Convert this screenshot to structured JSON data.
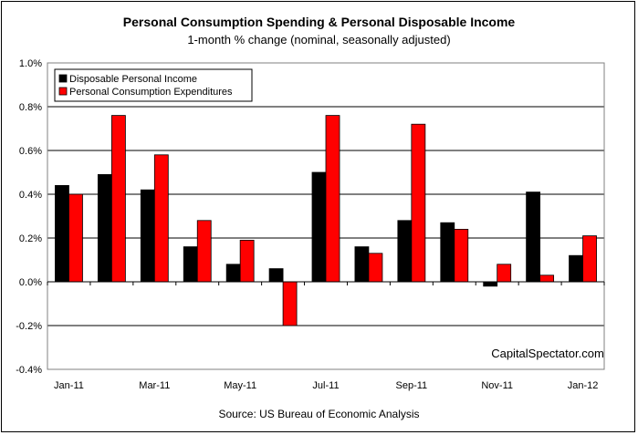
{
  "chart_data": {
    "type": "bar",
    "title": "Personal Consumption Spending & Personal Disposable Income",
    "subtitle": "1-month % change (nominal, seasonally adjusted)",
    "source": "Source: US Bureau of Economic Analysis",
    "watermark": "CapitalSpectator.com",
    "categories": [
      "Jan-11",
      "Feb-11",
      "Mar-11",
      "Apr-11",
      "May-11",
      "Jun-11",
      "Jul-11",
      "Aug-11",
      "Sep-11",
      "Oct-11",
      "Nov-11",
      "Dec-11",
      "Jan-12"
    ],
    "x_tick_labels": [
      "Jan-11",
      "",
      "Mar-11",
      "",
      "May-11",
      "",
      "Jul-11",
      "",
      "Sep-11",
      "",
      "Nov-11",
      "",
      "Jan-12"
    ],
    "series": [
      {
        "name": "Disposable Personal Income",
        "color": "#000000",
        "values": [
          0.44,
          0.49,
          0.42,
          0.16,
          0.08,
          0.06,
          0.5,
          0.16,
          0.28,
          0.27,
          -0.02,
          0.41,
          0.12
        ]
      },
      {
        "name": "Personal Consumption Expenditures",
        "color": "#ff0000",
        "values": [
          0.4,
          0.76,
          0.58,
          0.28,
          0.19,
          -0.2,
          0.76,
          0.13,
          0.72,
          0.24,
          0.08,
          0.03,
          0.21
        ]
      }
    ],
    "ylim": [
      -0.4,
      1.0
    ],
    "y_ticks": [
      -0.4,
      -0.2,
      0.0,
      0.2,
      0.4,
      0.6,
      0.8,
      1.0
    ],
    "y_tick_labels": [
      "-0.4%",
      "-0.2%",
      "0.0%",
      "0.2%",
      "0.4%",
      "0.6%",
      "0.8%",
      "1.0%"
    ],
    "grid": true,
    "legend_position": "top-left",
    "xlabel": "",
    "ylabel": ""
  }
}
